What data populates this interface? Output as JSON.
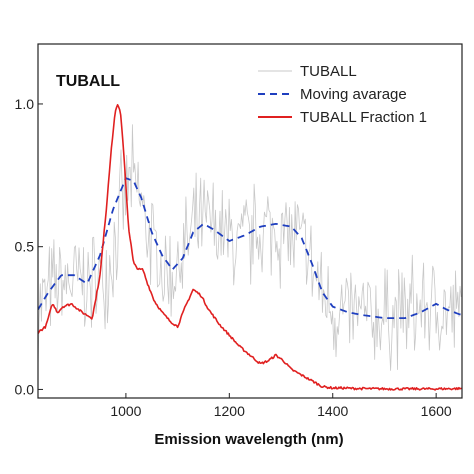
{
  "chart_data": {
    "type": "line",
    "title": "TUBALL",
    "xlabel": "Emission wavelength (nm)",
    "ylabel": "",
    "xlim": [
      830,
      1650
    ],
    "ylim": [
      -0.03,
      1.21
    ],
    "xticks": [
      {
        "value": 1000,
        "label": "1000"
      },
      {
        "value": 1200,
        "label": "1200"
      },
      {
        "value": 1400,
        "label": "1400"
      },
      {
        "value": 1600,
        "label": "1600"
      }
    ],
    "yticks": [
      {
        "value": 0.0,
        "label": "0.0"
      },
      {
        "value": 0.5,
        "label": "0.5"
      },
      {
        "value": 1.0,
        "label": "1.0"
      }
    ],
    "grid": false,
    "legend_position": "top-right",
    "series": [
      {
        "name": "TUBALL",
        "color": "#c8c8c8",
        "style": "solid",
        "noise_amplitude": 0.15,
        "x": [
          830,
          860,
          900,
          940,
          970,
          990,
          1005,
          1020,
          1040,
          1060,
          1080,
          1100,
          1130,
          1160,
          1190,
          1220,
          1250,
          1280,
          1310,
          1340,
          1360,
          1380,
          1400,
          1430,
          1460,
          1500,
          1540,
          1580,
          1610,
          1640
        ],
        "y": [
          0.29,
          0.35,
          0.38,
          0.37,
          0.45,
          0.62,
          0.72,
          0.7,
          0.58,
          0.45,
          0.39,
          0.43,
          0.55,
          0.58,
          0.53,
          0.51,
          0.54,
          0.56,
          0.55,
          0.51,
          0.42,
          0.33,
          0.28,
          0.26,
          0.25,
          0.25,
          0.27,
          0.29,
          0.27,
          0.26
        ]
      },
      {
        "name": "Moving avarage",
        "color": "#1f3fbf",
        "style": "dashed",
        "x": [
          830,
          850,
          875,
          900,
          925,
          950,
          975,
          1000,
          1015,
          1030,
          1050,
          1070,
          1090,
          1110,
          1130,
          1150,
          1170,
          1200,
          1230,
          1260,
          1290,
          1320,
          1340,
          1360,
          1380,
          1400,
          1430,
          1460,
          1500,
          1540,
          1570,
          1600,
          1620,
          1650
        ],
        "y": [
          0.28,
          0.34,
          0.4,
          0.4,
          0.37,
          0.47,
          0.63,
          0.74,
          0.73,
          0.67,
          0.55,
          0.47,
          0.42,
          0.46,
          0.55,
          0.58,
          0.56,
          0.52,
          0.54,
          0.57,
          0.58,
          0.57,
          0.53,
          0.44,
          0.34,
          0.29,
          0.27,
          0.26,
          0.25,
          0.25,
          0.27,
          0.3,
          0.28,
          0.26
        ]
      },
      {
        "name": "TUBALL Fraction 1",
        "color": "#e02020",
        "style": "solid",
        "x": [
          830,
          845,
          858,
          868,
          878,
          895,
          915,
          935,
          950,
          962,
          972,
          980,
          985,
          990,
          997,
          1005,
          1015,
          1025,
          1033,
          1040,
          1055,
          1070,
          1085,
          1100,
          1115,
          1130,
          1145,
          1160,
          1180,
          1200,
          1220,
          1240,
          1260,
          1275,
          1290,
          1305,
          1320,
          1340,
          1360,
          1380,
          1400,
          1420,
          1450,
          1500,
          1550,
          1600,
          1650
        ],
        "y": [
          0.2,
          0.22,
          0.3,
          0.27,
          0.29,
          0.3,
          0.27,
          0.25,
          0.4,
          0.63,
          0.85,
          0.98,
          1.0,
          0.96,
          0.8,
          0.57,
          0.44,
          0.42,
          0.42,
          0.38,
          0.31,
          0.27,
          0.24,
          0.22,
          0.29,
          0.35,
          0.33,
          0.28,
          0.23,
          0.19,
          0.15,
          0.12,
          0.09,
          0.1,
          0.12,
          0.1,
          0.07,
          0.05,
          0.03,
          0.01,
          0.005,
          0.005,
          0.003,
          0.002,
          0.002,
          0.002,
          0.003
        ]
      }
    ]
  }
}
